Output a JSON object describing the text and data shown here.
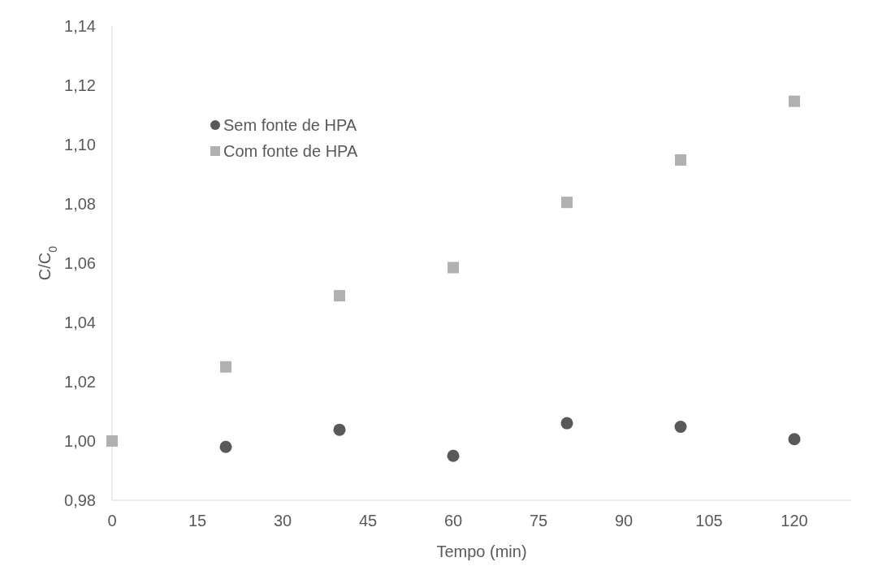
{
  "chart_data": {
    "type": "scatter",
    "xlabel": "Tempo (min)",
    "ylabel": "C/C$_{0}$",
    "x": [
      0,
      20,
      40,
      60,
      80,
      100,
      120
    ],
    "series": [
      {
        "name": "Sem fonte de HPA",
        "color": "#595959",
        "marker": "circle",
        "values": [
          null,
          0.998,
          1.0038,
          0.995,
          1.006,
          1.0048,
          1.0006
        ]
      },
      {
        "name": "Com fonte de HPA",
        "color": "#b0b0b0",
        "marker": "square",
        "values": [
          1.0,
          1.025,
          1.049,
          1.0585,
          1.0805,
          1.0948,
          1.1146
        ]
      }
    ],
    "xlim": [
      0,
      130
    ],
    "xticks": [
      0,
      15,
      30,
      45,
      60,
      75,
      90,
      105,
      120
    ],
    "ylim": [
      0.98,
      1.14
    ],
    "yticks": [
      {
        "value": 0.98,
        "label": "0,98"
      },
      {
        "value": 1.0,
        "label": "1,00"
      },
      {
        "value": 1.02,
        "label": "1,02"
      },
      {
        "value": 1.04,
        "label": "1,04"
      },
      {
        "value": 1.06,
        "label": "1,06"
      },
      {
        "value": 1.08,
        "label": "1,08"
      },
      {
        "value": 1.1,
        "label": "1,10"
      },
      {
        "value": 1.12,
        "label": "1,12"
      },
      {
        "value": 1.14,
        "label": "1,14"
      }
    ],
    "grid": false,
    "legend": "top left"
  }
}
